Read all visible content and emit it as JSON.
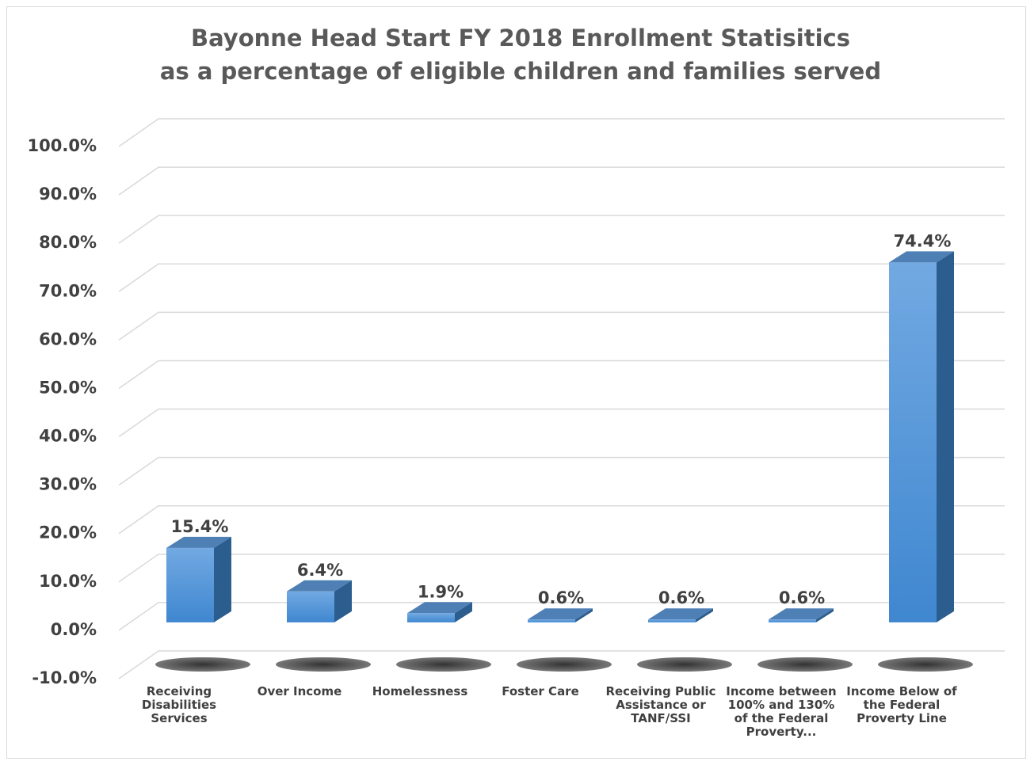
{
  "chart_data": {
    "type": "bar",
    "title": "Bayonne Head Start FY 2018 Enrollment Statisitics",
    "subtitle": "as a percentage of eligible children and families served",
    "categories": [
      "Receiving Disabilities Services",
      "Over Income",
      "Homelessness",
      "Foster Care",
      "Receiving Public Assistance or TANF/SSI",
      "Income between 100% and 130% of the Federal Proverty...",
      "Income Below of the Federal Proverty Line"
    ],
    "values": [
      15.4,
      6.4,
      1.9,
      0.6,
      0.6,
      0.6,
      74.4
    ],
    "value_labels": [
      "15.4%",
      "6.4%",
      "1.9%",
      "0.6%",
      "0.6%",
      "0.6%",
      "74.4%"
    ],
    "color": "#4a90d9",
    "ylim": [
      -10,
      100
    ],
    "yticks": [
      {
        "value": -10,
        "label": "-10.0%"
      },
      {
        "value": 0,
        "label": "0.0%"
      },
      {
        "value": 10,
        "label": "10.0%"
      },
      {
        "value": 20,
        "label": "20.0%"
      },
      {
        "value": 30,
        "label": "30.0%"
      },
      {
        "value": 40,
        "label": "40.0%"
      },
      {
        "value": 50,
        "label": "50.0%"
      },
      {
        "value": 60,
        "label": "60.0%"
      },
      {
        "value": 70,
        "label": "70.0%"
      },
      {
        "value": 80,
        "label": "80.0%"
      },
      {
        "value": 90,
        "label": "90.0%"
      },
      {
        "value": 100,
        "label": "100.0%"
      }
    ],
    "grid": true
  }
}
